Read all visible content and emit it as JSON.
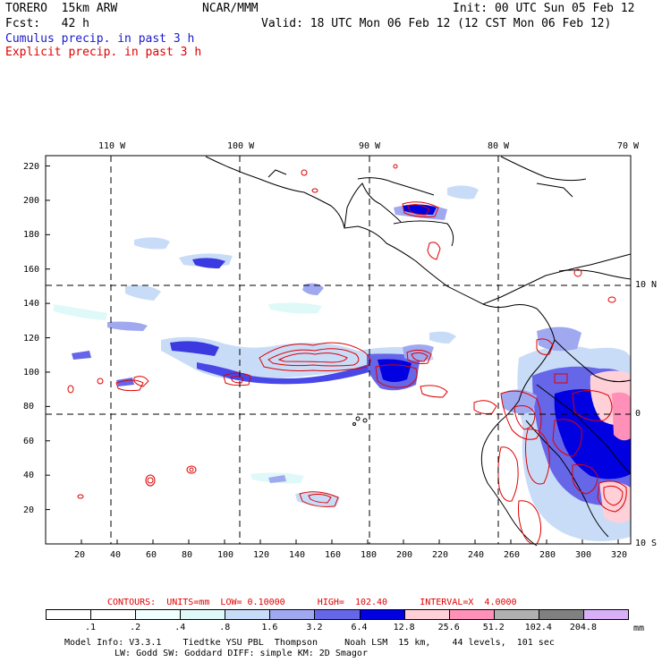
{
  "header": {
    "model": "TORERO  15km ARW",
    "center": "NCAR/MMM",
    "init": "Init: 00 UTC Sun 05 Feb 12",
    "fcst": "Fcst:   42 h",
    "valid": "Valid: 18 UTC Mon 06 Feb 12 (12 CST Mon 06 Feb 12)",
    "cumulus": "Cumulus precip. in past 3 h",
    "explicit": "Explicit precip. in past 3 h",
    "cumulus_color": "#1a1acc",
    "explicit_color": "#e00000"
  },
  "map": {
    "lon_labels": [
      "110 W",
      "100 W",
      "90 W",
      "80 W",
      "70 W"
    ],
    "lat_labels": [
      "10 N",
      "0",
      "10 S"
    ],
    "x_ticks": [
      "20",
      "40",
      "60",
      "80",
      "100",
      "120",
      "140",
      "160",
      "180",
      "200",
      "220",
      "240",
      "260",
      "280",
      "300",
      "320"
    ],
    "y_ticks": [
      "20",
      "40",
      "60",
      "80",
      "100",
      "120",
      "140",
      "160",
      "180",
      "200",
      "220"
    ]
  },
  "contour_info": "CONTOURS:  UNITS=mm  LOW= 0.10000      HIGH=  102.40      INTERVAL=X  4.0000",
  "colorbar": {
    "labels": [
      ".1",
      ".2",
      ".4",
      ".8",
      "1.6",
      "3.2",
      "6.4",
      "12.8",
      "25.6",
      "51.2",
      "102.4",
      "204.8"
    ],
    "unit": "mm",
    "colors": [
      "#ffffff",
      "#ffffff",
      "#f0ffff",
      "#dff8f8",
      "#c8dcf8",
      "#a0a8f0",
      "#6666e8",
      "#0000e0",
      "#ffd0d8",
      "#ff90b8",
      "#b0b0b0",
      "#808080",
      "#d8b0f8"
    ]
  },
  "model_info": {
    "line1": "Model Info: V3.3.1    Tiedtke YSU PBL  Thompson     Noah LSM  15 km,    44 levels,  101 sec",
    "line2": "LW: Godd SW: Goddard DIFF: simple KM: 2D Smagor"
  }
}
